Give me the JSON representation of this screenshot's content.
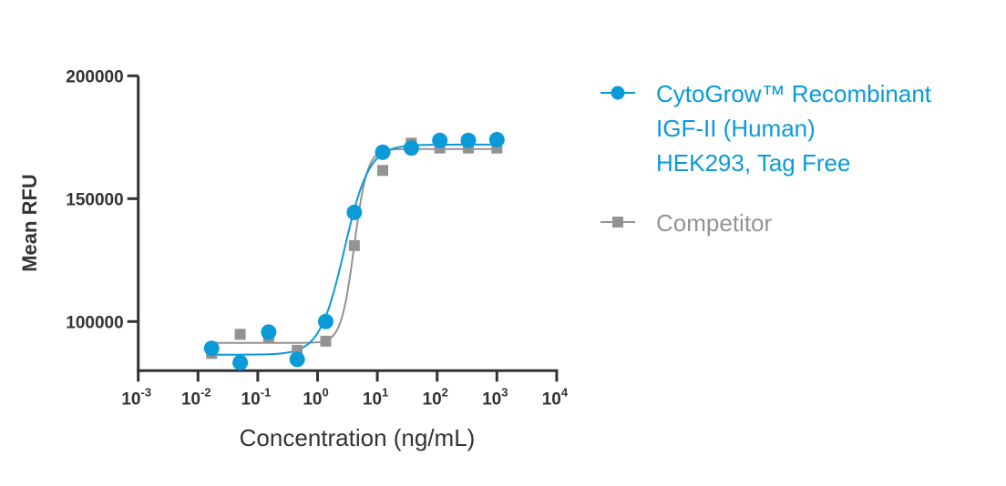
{
  "chart_data": {
    "type": "scatter",
    "title": "",
    "xlabel": "Concentration (ng/mL)",
    "ylabel": "Mean RFU",
    "xscale": "log",
    "xlim": [
      0.001,
      10000
    ],
    "ylim": [
      80000,
      200000
    ],
    "x_ticks": [
      {
        "base": "10",
        "exp": "-3",
        "value": 0.001
      },
      {
        "base": "10",
        "exp": "-2",
        "value": 0.01
      },
      {
        "base": "10",
        "exp": "-1",
        "value": 0.1
      },
      {
        "base": "10",
        "exp": "0",
        "value": 1
      },
      {
        "base": "10",
        "exp": "1",
        "value": 10
      },
      {
        "base": "10",
        "exp": "2",
        "value": 100
      },
      {
        "base": "10",
        "exp": "3",
        "value": 1000
      },
      {
        "base": "10",
        "exp": "4",
        "value": 10000
      }
    ],
    "y_ticks": [
      {
        "label": "200000",
        "value": 200000
      },
      {
        "label": "150000",
        "value": 150000
      },
      {
        "label": "100000",
        "value": 100000
      }
    ],
    "legend_position": "right",
    "series": [
      {
        "name": "CytoGrow™ Recombinant IGF-II (Human) HEK293, Tag Free",
        "legend_lines": [
          "CytoGrow™ Recombinant",
          "IGF-II (Human)",
          "HEK293, Tag Free"
        ],
        "color": "#0a9ad8",
        "marker": "circle",
        "x": [
          0.0169,
          0.0508,
          0.152,
          0.457,
          1.37,
          4.12,
          12.3,
          37,
          111,
          333,
          1000
        ],
        "y": [
          89100,
          83300,
          95700,
          84600,
          100000,
          144400,
          168900,
          170600,
          173700,
          173700,
          174000
        ],
        "fit": {
          "model": "4PL",
          "bottom": 86500,
          "top": 172000,
          "ec50": 2.8,
          "hill": 2.1
        }
      },
      {
        "name": "Competitor",
        "legend_lines": [
          "Competitor"
        ],
        "color": "#939393",
        "marker": "square",
        "x": [
          0.0169,
          0.0508,
          0.152,
          0.457,
          1.37,
          4.12,
          12.3,
          37,
          111,
          333,
          1000
        ],
        "y": [
          87000,
          94800,
          93800,
          88300,
          92000,
          130900,
          161500,
          172600,
          170600,
          170600,
          170600
        ],
        "fit": {
          "model": "4PL",
          "bottom": 91300,
          "top": 170200,
          "ec50": 4.1,
          "hill": 4
        }
      }
    ]
  }
}
